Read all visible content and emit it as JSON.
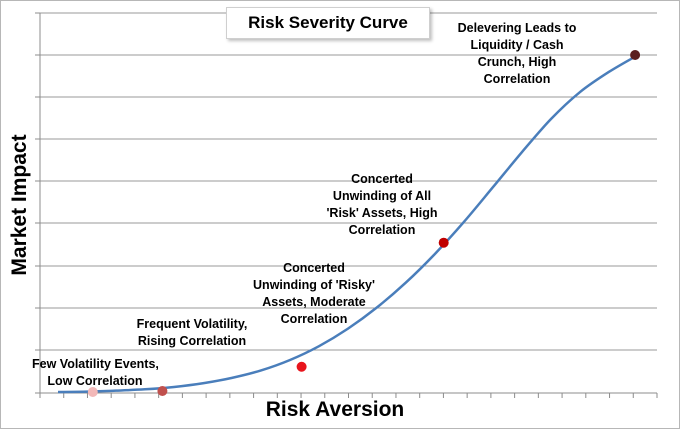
{
  "chart_data": {
    "type": "line",
    "title": "Risk Severity Curve",
    "xlabel": "Risk Aversion",
    "ylabel": "Market Impact",
    "grid": true,
    "legend": "none",
    "series": [
      {
        "name": "",
        "color": "#4a7ebb",
        "curve": [
          [
            0.0,
            0.0
          ],
          [
            0.5,
            0.001
          ],
          [
            1.0,
            0.004
          ],
          [
            1.5,
            0.008
          ],
          [
            2.0,
            0.015
          ],
          [
            2.5,
            0.026
          ],
          [
            3.0,
            0.042
          ],
          [
            3.5,
            0.064
          ],
          [
            4.0,
            0.095
          ],
          [
            4.5,
            0.136
          ],
          [
            5.0,
            0.188
          ],
          [
            5.5,
            0.251
          ],
          [
            6.0,
            0.325
          ],
          [
            6.5,
            0.41
          ],
          [
            7.0,
            0.505
          ],
          [
            7.5,
            0.608
          ],
          [
            8.0,
            0.712
          ],
          [
            8.5,
            0.81
          ],
          [
            9.0,
            0.89
          ],
          [
            9.5,
            0.95
          ],
          [
            10.0,
            1.0
          ]
        ]
      }
    ],
    "points": [
      {
        "x": 0.6,
        "y": 0.0,
        "color": "#f2b8b8",
        "label": "Few Volatility Events, Low Correlation"
      },
      {
        "x": 1.8,
        "y": 0.003,
        "color": "#c0504d",
        "label": "Frequent Volatility, Rising Correlation"
      },
      {
        "x": 4.2,
        "y": 0.075,
        "color": "#e8141c",
        "label": "Concerted Unwinding of 'Risky' Assets, Moderate Correlation"
      },
      {
        "x": 6.65,
        "y": 0.443,
        "color": "#c00000",
        "label": "Concerted Unwinding of All 'Risk' Assets, High Correlation"
      },
      {
        "x": 9.95,
        "y": 1.0,
        "color": "#5a1f1f",
        "label": "Delevering Leads to Liquidity / Cash Crunch, High Correlation"
      }
    ],
    "annotations": [
      {
        "lines": [
          "Few Volatility Events,",
          "Low Correlation"
        ]
      },
      {
        "lines": [
          "Frequent Volatility,",
          "Rising Correlation"
        ]
      },
      {
        "lines": [
          "Concerted",
          "Unwinding of 'Risky'",
          "Assets, Moderate",
          "Correlation"
        ]
      },
      {
        "lines": [
          "Concerted",
          "Unwinding of All",
          "'Risk' Assets, High",
          "Correlation"
        ]
      },
      {
        "lines": [
          "Delevering Leads to",
          "Liquidity / Cash",
          "Crunch, High",
          "Correlation"
        ]
      }
    ]
  }
}
